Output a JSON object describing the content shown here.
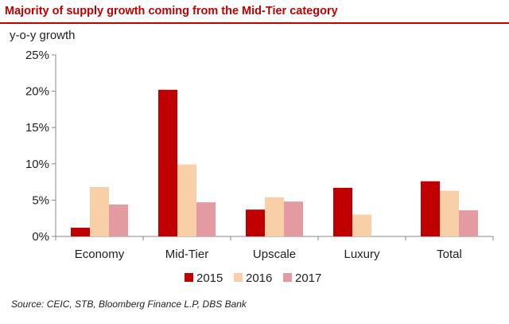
{
  "chart_data": {
    "type": "bar",
    "title": "Majority of supply growth coming from the Mid-Tier category",
    "ylabel": "y-o-y growth",
    "xlabel": "",
    "categories": [
      "Economy",
      "Mid-Tier",
      "Upscale",
      "Luxury",
      "Total"
    ],
    "series": [
      {
        "name": "2015",
        "color": "#c00000",
        "values": [
          1.2,
          20.2,
          3.7,
          6.7,
          7.6
        ]
      },
      {
        "name": "2016",
        "color": "#f8cfa6",
        "values": [
          6.8,
          9.9,
          5.4,
          3.0,
          6.3
        ]
      },
      {
        "name": "2017",
        "color": "#e39aa0",
        "values": [
          4.4,
          4.7,
          4.8,
          null,
          3.6
        ]
      }
    ],
    "ylim": [
      0,
      25
    ],
    "yticks": [
      "0%",
      "5%",
      "10%",
      "15%",
      "20%",
      "25%"
    ],
    "grid": false,
    "legend": "bottom",
    "source": "Source: CEIC, STB, Bloomberg Finance L.P,  DBS Bank"
  }
}
